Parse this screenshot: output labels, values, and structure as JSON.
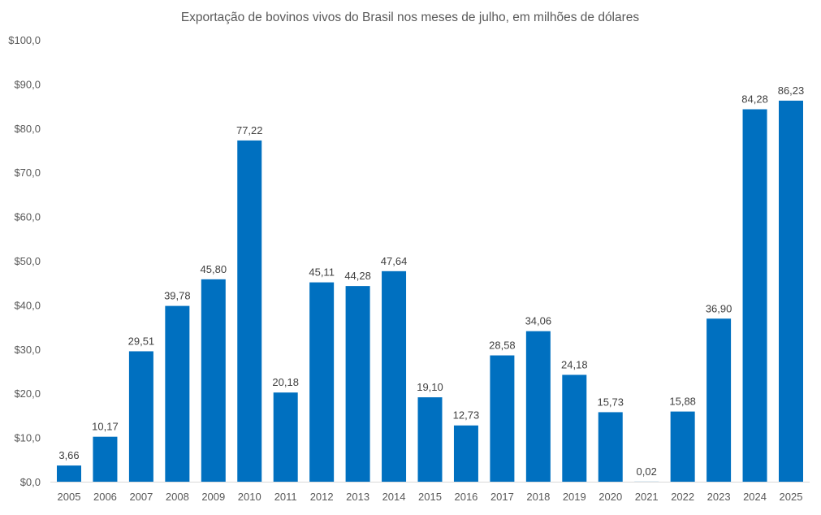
{
  "chart_data": {
    "type": "bar",
    "title": "Exportação de bovinos vivos do Brasil nos meses de julho, em milhões de dólares",
    "xlabel": "",
    "ylabel": "",
    "categories": [
      "2005",
      "2006",
      "2007",
      "2008",
      "2009",
      "2010",
      "2011",
      "2012",
      "2013",
      "2014",
      "2015",
      "2016",
      "2017",
      "2018",
      "2019",
      "2020",
      "2021",
      "2022",
      "2023",
      "2024",
      "2025"
    ],
    "values": [
      3.66,
      10.17,
      29.51,
      39.78,
      45.8,
      77.22,
      20.18,
      45.11,
      44.28,
      47.64,
      19.1,
      12.73,
      28.58,
      34.06,
      24.18,
      15.73,
      0.02,
      15.88,
      36.9,
      84.28,
      86.23
    ],
    "data_labels": [
      "3,66",
      "10,17",
      "29,51",
      "39,78",
      "45,80",
      "77,22",
      "20,18",
      "45,11",
      "44,28",
      "47,64",
      "19,10",
      "12,73",
      "28,58",
      "34,06",
      "24,18",
      "15,73",
      "0,02",
      "15,88",
      "36,90",
      "84,28",
      "86,23"
    ],
    "ylim": [
      0,
      100
    ],
    "yticks": [
      0,
      10,
      20,
      30,
      40,
      50,
      60,
      70,
      80,
      90,
      100
    ],
    "ytick_labels": [
      "$0,0",
      "$10,0",
      "$20,0",
      "$30,0",
      "$40,0",
      "$50,0",
      "$60,0",
      "$70,0",
      "$80,0",
      "$90,0",
      "$100,0"
    ],
    "grid": false,
    "legend": "none",
    "bar_color": "#0070C0"
  }
}
